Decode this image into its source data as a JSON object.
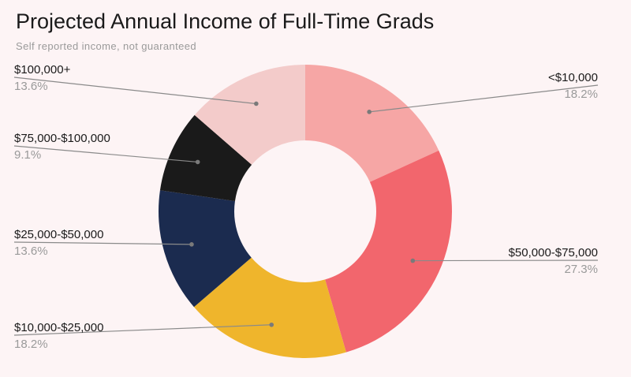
{
  "chart_data": {
    "type": "pie",
    "title": "Projected Annual Income of Full-Time Grads",
    "subtitle": "Self reported income, not guaranteed",
    "donut": true,
    "slices": [
      {
        "label": "<$10,000",
        "value": 18.2,
        "display": "18.2%",
        "color": "#f6a6a5"
      },
      {
        "label": "$50,000-$75,000",
        "value": 27.3,
        "display": "27.3%",
        "color": "#f2666d"
      },
      {
        "label": "$10,000-$25,000",
        "value": 18.2,
        "display": "18.2%",
        "color": "#efb52c"
      },
      {
        "label": "$25,000-$50,000",
        "value": 13.6,
        "display": "13.6%",
        "color": "#1b2b4f"
      },
      {
        "label": "$75,000-$100,000",
        "value": 9.1,
        "display": "9.1%",
        "color": "#1a1a1a"
      },
      {
        "label": "$100,000+",
        "value": 13.6,
        "display": "13.6%",
        "color": "#f3cbca"
      }
    ],
    "legend": "none",
    "label_position": "outside with leader lines"
  }
}
